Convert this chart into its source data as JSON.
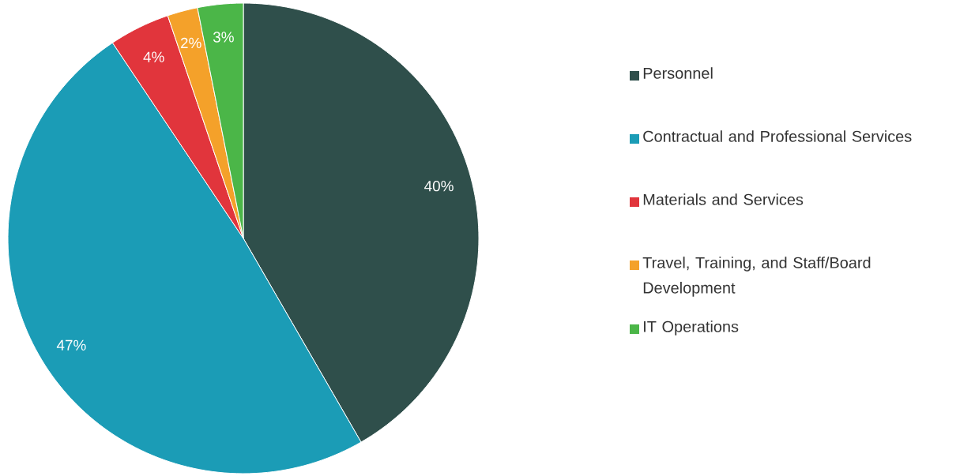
{
  "chart_data": {
    "type": "pie",
    "categories": [
      "Personnel",
      "Contractual and Professional Services",
      "Materials and Services",
      "Travel, Training, and Staff/Board Development",
      "IT Operations"
    ],
    "values": [
      40,
      47,
      4,
      2,
      3
    ],
    "value_labels": [
      "40%",
      "47%",
      "4%",
      "2%",
      "3%"
    ],
    "colors": [
      "#2f4f4b",
      "#1b9cb6",
      "#e1353c",
      "#f4a12a",
      "#4bb648"
    ],
    "legend": "right"
  }
}
